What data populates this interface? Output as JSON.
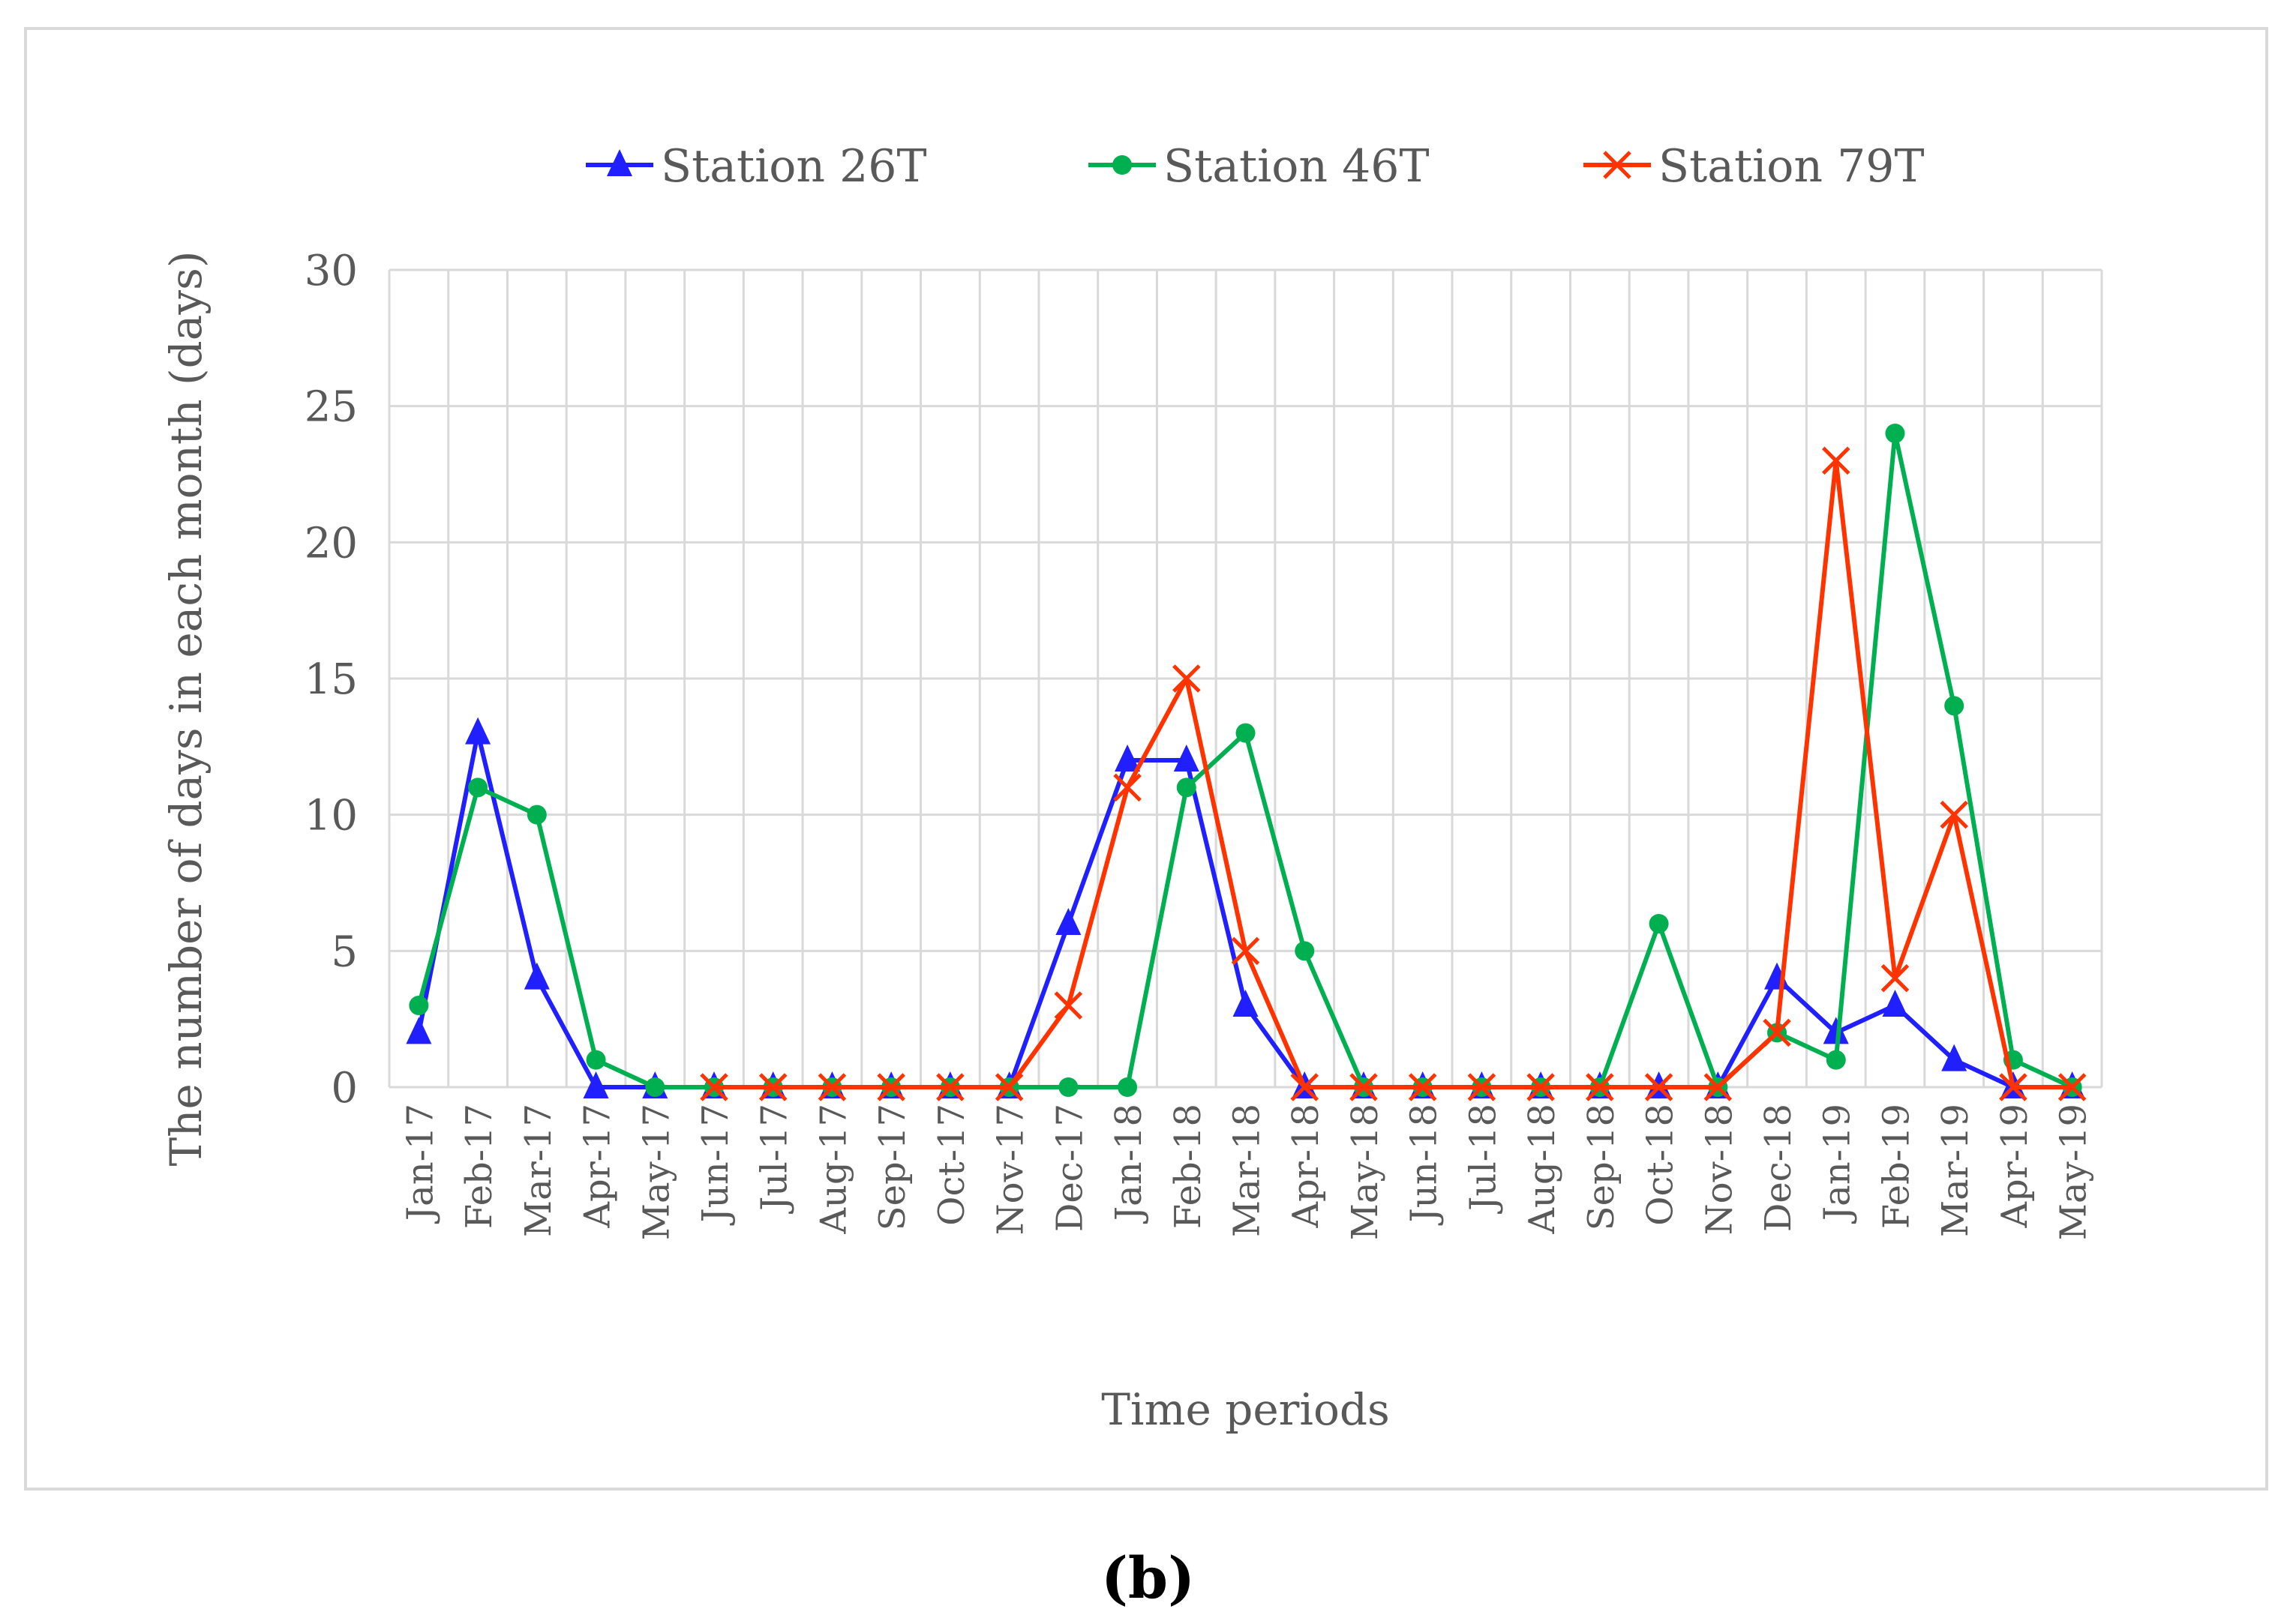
{
  "chart_data": {
    "type": "line",
    "title": "",
    "xlabel": "Time periods",
    "ylabel": "The number of days in each month (days)",
    "ylim": [
      0,
      30
    ],
    "yticks": [
      0,
      5,
      10,
      15,
      20,
      25,
      30
    ],
    "grid": true,
    "legend_position": "top",
    "categories": [
      "Jan-17",
      "Feb-17",
      "Mar-17",
      "Apr-17",
      "May-17",
      "Jun-17",
      "Jul-17",
      "Aug-17",
      "Sep-17",
      "Oct-17",
      "Nov-17",
      "Dec-17",
      "Jan-18",
      "Feb-18",
      "Mar-18",
      "Apr-18",
      "May-18",
      "Jun-18",
      "Jul-18",
      "Aug-18",
      "Sep-18",
      "Oct-18",
      "Nov-18",
      "Dec-18",
      "Jan-19",
      "Feb-19",
      "Mar-19",
      "Apr-19",
      "May-19"
    ],
    "series": [
      {
        "name": "Station 26T",
        "color": "#1f1fff",
        "marker": "triangle",
        "values": [
          2,
          13,
          4,
          0,
          0,
          0,
          0,
          0,
          0,
          0,
          0,
          6,
          12,
          12,
          3,
          0,
          0,
          0,
          0,
          0,
          0,
          0,
          0,
          4,
          2,
          3,
          1,
          0,
          0
        ]
      },
      {
        "name": "Station 46T",
        "color": "#00b050",
        "marker": "circle",
        "values": [
          3,
          11,
          10,
          1,
          0,
          0,
          0,
          0,
          0,
          0,
          0,
          0,
          0,
          11,
          13,
          5,
          0,
          0,
          0,
          0,
          0,
          6,
          0,
          2,
          1,
          24,
          14,
          1,
          0
        ]
      },
      {
        "name": "Station 79T",
        "color": "#ff3300",
        "marker": "x",
        "values": [
          null,
          null,
          null,
          null,
          null,
          0,
          0,
          0,
          0,
          0,
          0,
          3,
          11,
          15,
          5,
          0,
          0,
          0,
          0,
          0,
          0,
          0,
          0,
          2,
          23,
          4,
          10,
          0,
          0
        ]
      }
    ]
  },
  "panel_label": "(b)"
}
